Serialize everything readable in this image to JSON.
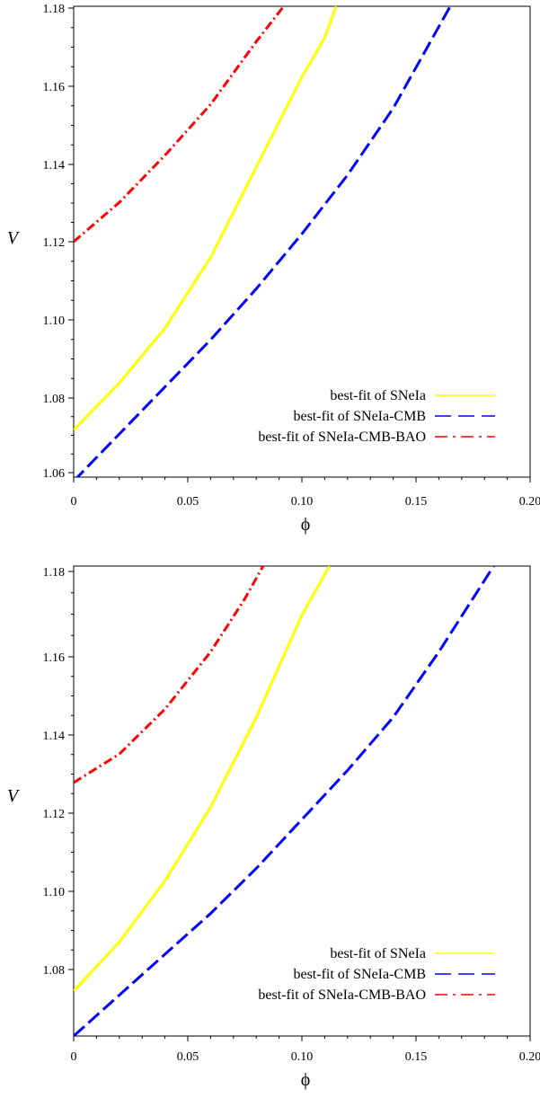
{
  "chart_data": [
    {
      "type": "line",
      "xlabel": "ϕ",
      "ylabel": "V",
      "xlim": [
        0,
        0.2
      ],
      "ylim": [
        1.06,
        1.18
      ],
      "x_ticks": [
        "0",
        "0.05",
        "0.10",
        "0.15",
        "0.20"
      ],
      "y_ticks": [
        "1.06",
        "1.08",
        "1.10",
        "1.12",
        "1.14",
        "1.16",
        "1.18"
      ],
      "grid": false,
      "legend_position": "bottom-right",
      "series": [
        {
          "name": "best-fit of SNeIa",
          "color": "#ffff00",
          "dash": "solid",
          "x": [
            0,
            0.02,
            0.04,
            0.06,
            0.08,
            0.1,
            0.11,
            0.115
          ],
          "y": [
            1.072,
            1.084,
            1.098,
            1.116,
            1.139,
            1.162,
            1.172,
            1.18
          ]
        },
        {
          "name": "best-fit of SNeIa-CMB",
          "color": "#0000ff",
          "dash": "dashed",
          "x": [
            0,
            0.02,
            0.04,
            0.06,
            0.08,
            0.1,
            0.12,
            0.14,
            0.165
          ],
          "y": [
            1.059,
            1.071,
            1.083,
            1.095,
            1.108,
            1.122,
            1.137,
            1.154,
            1.18
          ]
        },
        {
          "name": "best-fit of SNeIa-CMB-BAO",
          "color": "#ff0000",
          "dash": "dashdot",
          "x": [
            0,
            0.02,
            0.04,
            0.06,
            0.08,
            0.092
          ],
          "y": [
            1.12,
            1.13,
            1.142,
            1.155,
            1.171,
            1.18
          ]
        }
      ]
    },
    {
      "type": "line",
      "xlabel": "ϕ",
      "ylabel": "V",
      "xlim": [
        0,
        0.2
      ],
      "ylim": [
        1.065,
        1.18
      ],
      "x_ticks": [
        "0",
        "0.05",
        "0.10",
        "0.15",
        "0.20"
      ],
      "y_ticks": [
        "1.08",
        "1.10",
        "1.12",
        "1.14",
        "1.16",
        "1.18"
      ],
      "grid": false,
      "legend_position": "bottom-right",
      "series": [
        {
          "name": "best-fit of SNeIa",
          "color": "#ffff00",
          "dash": "solid",
          "x": [
            0,
            0.02,
            0.04,
            0.06,
            0.08,
            0.1,
            0.112
          ],
          "y": [
            1.076,
            1.088,
            1.103,
            1.121,
            1.143,
            1.168,
            1.18
          ]
        },
        {
          "name": "best-fit of SNeIa-CMB",
          "color": "#0000ff",
          "dash": "dashed",
          "x": [
            0,
            0.02,
            0.04,
            0.06,
            0.08,
            0.1,
            0.12,
            0.14,
            0.16,
            0.184
          ],
          "y": [
            1.065,
            1.075,
            1.085,
            1.095,
            1.106,
            1.118,
            1.13,
            1.143,
            1.159,
            1.18
          ]
        },
        {
          "name": "best-fit of SNeIa-CMB-BAO",
          "color": "#ff0000",
          "dash": "dashdot",
          "x": [
            0,
            0.02,
            0.04,
            0.06,
            0.075,
            0.083
          ],
          "y": [
            1.127,
            1.134,
            1.145,
            1.159,
            1.172,
            1.18
          ]
        }
      ]
    }
  ]
}
